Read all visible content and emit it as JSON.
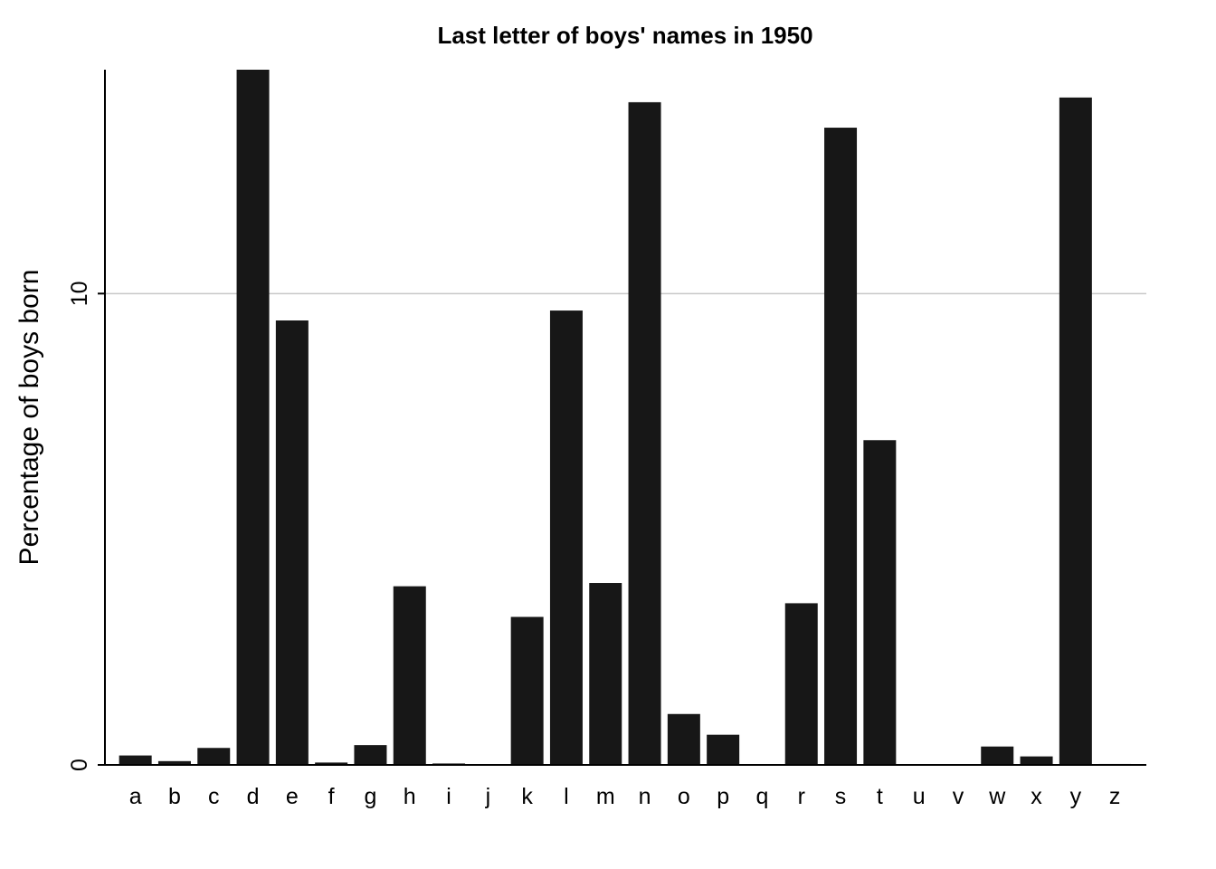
{
  "chart_data": {
    "type": "bar",
    "title": "Last letter of boys' names in 1950",
    "xlabel": "",
    "ylabel": "Percentage of boys born",
    "categories": [
      "a",
      "b",
      "c",
      "d",
      "e",
      "f",
      "g",
      "h",
      "i",
      "j",
      "k",
      "l",
      "m",
      "n",
      "o",
      "p",
      "q",
      "r",
      "s",
      "t",
      "u",
      "v",
      "w",
      "x",
      "y",
      "z"
    ],
    "values": [
      0.2,
      0.08,
      0.36,
      14.75,
      9.43,
      0.05,
      0.42,
      3.79,
      0.03,
      0.0,
      3.14,
      9.64,
      3.86,
      14.06,
      1.08,
      0.64,
      0.0,
      3.43,
      13.52,
      6.89,
      0.01,
      0.01,
      0.39,
      0.18,
      14.16,
      0.02
    ],
    "ylim": [
      0,
      14.75
    ],
    "yticks": [
      0,
      10
    ],
    "grid": true,
    "legend": "none",
    "bar_color": "#171717",
    "grid_color": "#c8c8c8"
  }
}
